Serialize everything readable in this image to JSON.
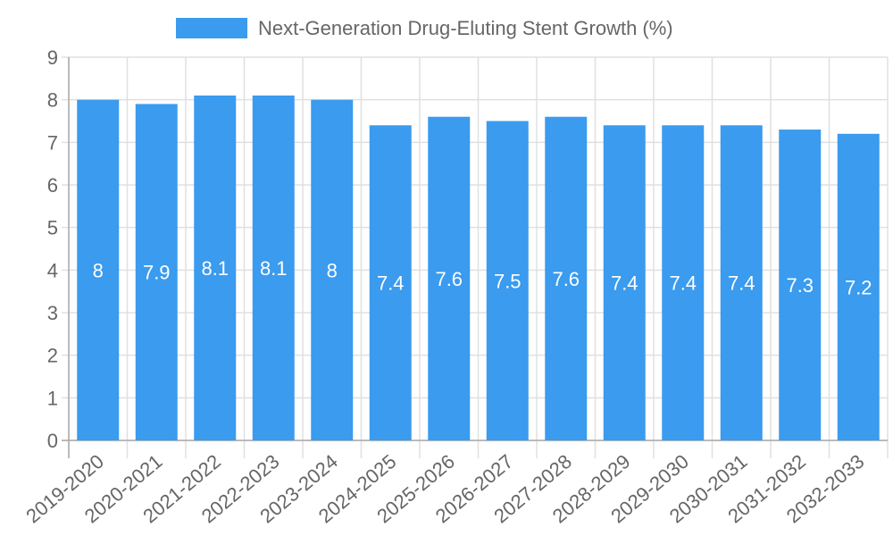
{
  "chart_data": {
    "type": "bar",
    "title": "",
    "legend": {
      "label": "Next-Generation Drug-Eluting Stent Growth (%)",
      "position": "top"
    },
    "categories": [
      "2019-2020",
      "2020-2021",
      "2021-2022",
      "2022-2023",
      "2023-2024",
      "2024-2025",
      "2025-2026",
      "2026-2027",
      "2027-2028",
      "2028-2029",
      "2029-2030",
      "2030-2031",
      "2031-2032",
      "2032-2033"
    ],
    "series": [
      {
        "name": "Next-Generation Drug-Eluting Stent Growth (%)",
        "values": [
          8,
          7.9,
          8.1,
          8.1,
          8,
          7.4,
          7.6,
          7.5,
          7.6,
          7.4,
          7.4,
          7.4,
          7.3,
          7.2
        ],
        "labels": [
          "8",
          "7.9",
          "8.1",
          "8.1",
          "8",
          "7.4",
          "7.6",
          "7.5",
          "7.6",
          "7.4",
          "7.4",
          "7.4",
          "7.3",
          "7.2"
        ],
        "color": "#3a9bef"
      }
    ],
    "xlabel": "",
    "ylabel": "",
    "ylim": [
      0,
      9
    ],
    "yticks": [
      "0",
      "1",
      "2",
      "3",
      "4",
      "5",
      "6",
      "7",
      "8",
      "9"
    ],
    "grid": true
  }
}
